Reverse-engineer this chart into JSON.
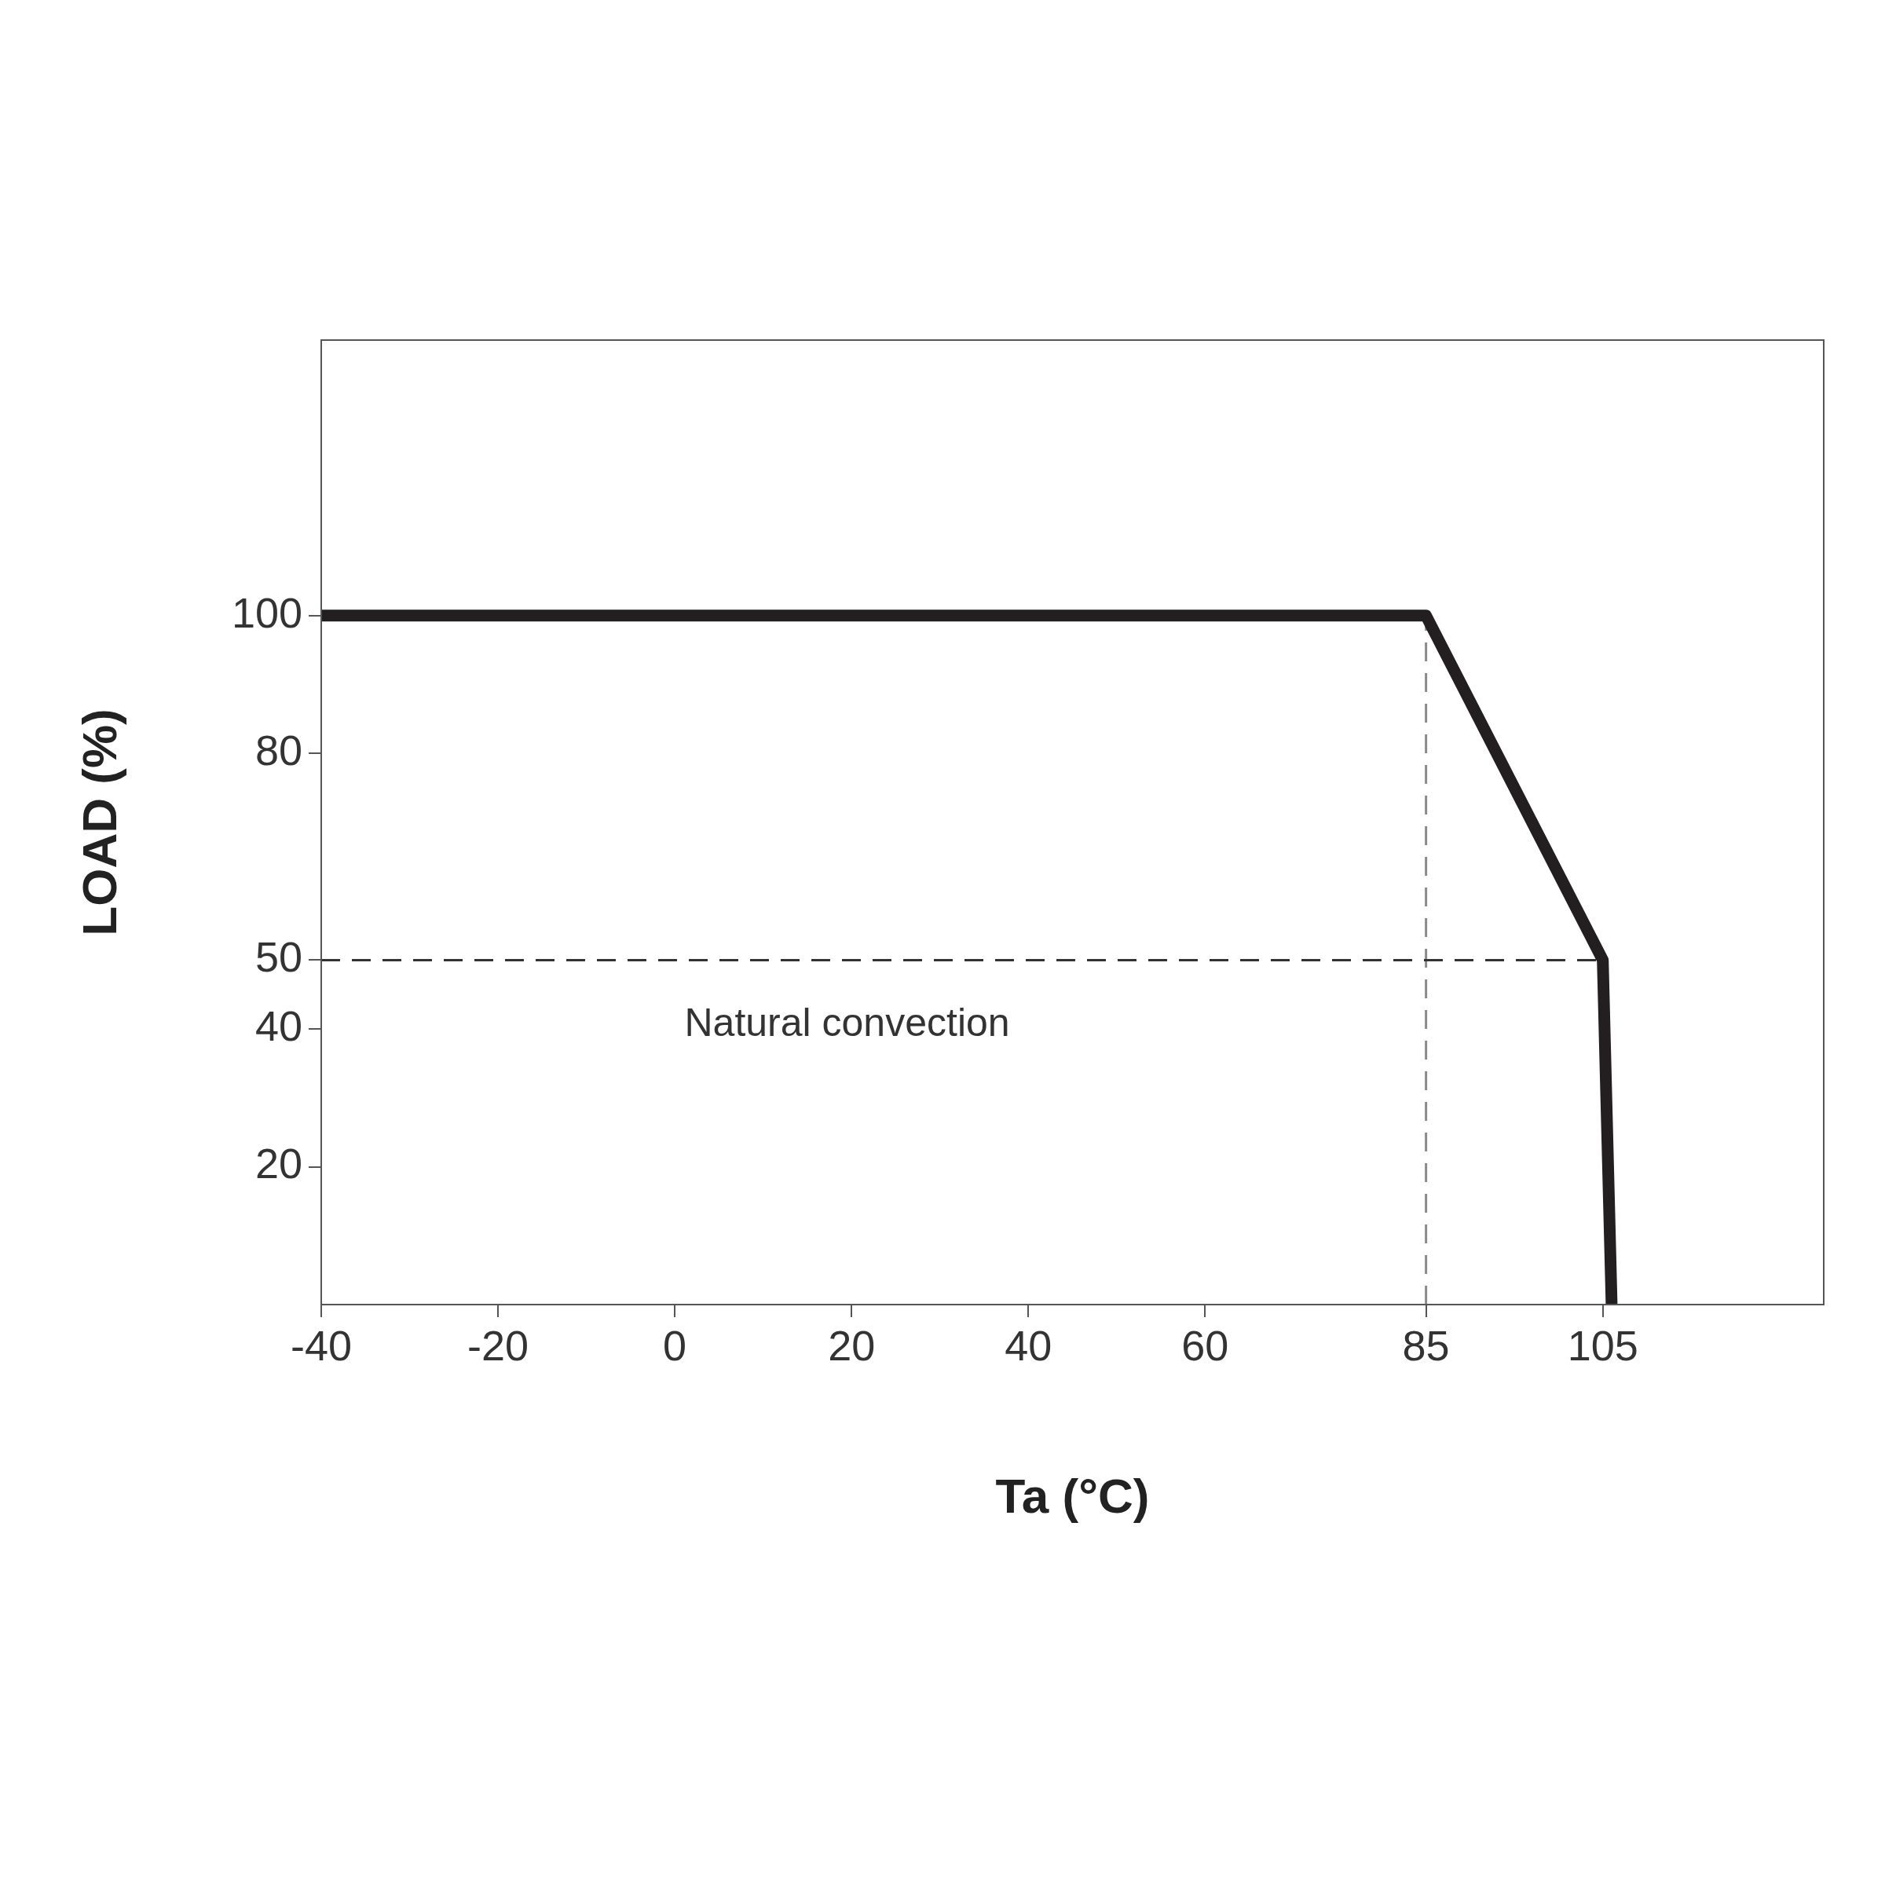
{
  "chart_data": {
    "type": "line",
    "xlabel": "Ta (°C)",
    "ylabel": "LOAD (%)",
    "x": [
      -40,
      85,
      105,
      106
    ],
    "series": [
      {
        "color": "#231f20",
        "values": [
          100,
          100,
          50,
          0
        ]
      }
    ],
    "xlim": [
      -40,
      130
    ],
    "xticks": [
      -40,
      -20,
      0,
      20,
      40,
      60,
      85,
      105
    ],
    "ylim": [
      0,
      140
    ],
    "yticks": [
      20,
      40,
      50,
      80,
      100
    ],
    "ref_lines": [
      {
        "axis": "x",
        "value": 85,
        "color": "#8a8a8a",
        "line_style": "dashed"
      },
      {
        "axis": "y",
        "value": 50,
        "color": "#333333",
        "line_style": "dashed"
      }
    ],
    "annotations": [
      "Natural convection"
    ]
  }
}
